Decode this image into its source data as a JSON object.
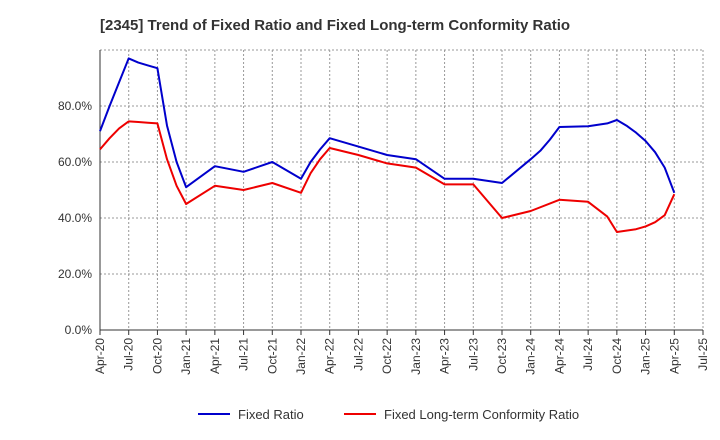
{
  "chart_data": {
    "type": "line",
    "title": "[2345]  Trend of Fixed Ratio and Fixed Long-term Conformity Ratio",
    "xlabel": "",
    "ylabel": "",
    "ylim": [
      0,
      100
    ],
    "y_ticks": [
      "0.0%",
      "20.0%",
      "40.0%",
      "60.0%",
      "80.0%"
    ],
    "y_tick_values": [
      0,
      20,
      40,
      60,
      80
    ],
    "x_ticks": [
      "Apr-20",
      "Jul-20",
      "Oct-20",
      "Jan-21",
      "Apr-21",
      "Jul-21",
      "Oct-21",
      "Jan-22",
      "Apr-22",
      "Jul-22",
      "Oct-22",
      "Jan-23",
      "Apr-23",
      "Jul-23",
      "Oct-23",
      "Jan-24",
      "Apr-24",
      "Jul-24",
      "Oct-24",
      "Jan-25",
      "Apr-25",
      "Jul-25"
    ],
    "grid": true,
    "legend_position": "bottom",
    "series": [
      {
        "name": "Fixed Ratio",
        "color": "#0000cc",
        "x": [
          "Apr-20",
          "May-20",
          "Jun-20",
          "Jul-20",
          "Aug-20",
          "Sep-20",
          "Oct-20",
          "Nov-20",
          "Dec-20",
          "Jan-21",
          "Apr-21",
          "Jul-21",
          "Oct-21",
          "Jan-22",
          "Feb-22",
          "Mar-22",
          "Apr-22",
          "Jul-22",
          "Oct-22",
          "Jan-23",
          "Apr-23",
          "Jul-23",
          "Oct-23",
          "Jan-24",
          "Feb-24",
          "Mar-24",
          "Apr-24",
          "Jul-24",
          "Sep-24",
          "Oct-24",
          "Nov-24",
          "Dec-24",
          "Jan-25",
          "Feb-25",
          "Mar-25",
          "Apr-25"
        ],
        "values": [
          71.0,
          80.0,
          88.5,
          97.0,
          95.5,
          94.5,
          93.5,
          73.0,
          60.0,
          51.0,
          58.5,
          56.5,
          60.0,
          54.0,
          60.0,
          64.5,
          68.5,
          65.5,
          62.5,
          61.0,
          54.0,
          54.0,
          52.5,
          61.0,
          64.0,
          68.0,
          72.5,
          72.8,
          73.8,
          75.0,
          73.0,
          70.5,
          67.5,
          63.5,
          58.0,
          49.0
        ]
      },
      {
        "name": "Fixed Long-term Conformity Ratio",
        "color": "#ee0000",
        "x": [
          "Apr-20",
          "May-20",
          "Jun-20",
          "Jul-20",
          "Aug-20",
          "Sep-20",
          "Oct-20",
          "Nov-20",
          "Dec-20",
          "Jan-21",
          "Apr-21",
          "Jul-21",
          "Oct-21",
          "Jan-22",
          "Feb-22",
          "Mar-22",
          "Apr-22",
          "Jul-22",
          "Oct-22",
          "Jan-23",
          "Apr-23",
          "Jul-23",
          "Oct-23",
          "Jan-24",
          "Apr-24",
          "Jul-24",
          "Sep-24",
          "Oct-24",
          "Nov-24",
          "Dec-24",
          "Jan-25",
          "Feb-25",
          "Mar-25",
          "Apr-25"
        ],
        "values": [
          64.5,
          68.5,
          72.0,
          74.5,
          74.3,
          74.0,
          73.8,
          61.0,
          51.5,
          45.0,
          51.5,
          50.0,
          52.5,
          49.0,
          56.0,
          61.0,
          65.0,
          62.5,
          59.5,
          58.0,
          52.0,
          52.0,
          40.0,
          42.5,
          46.5,
          45.8,
          40.5,
          35.0,
          35.5,
          36.0,
          37.0,
          38.5,
          41.0,
          48.5
        ]
      }
    ]
  }
}
